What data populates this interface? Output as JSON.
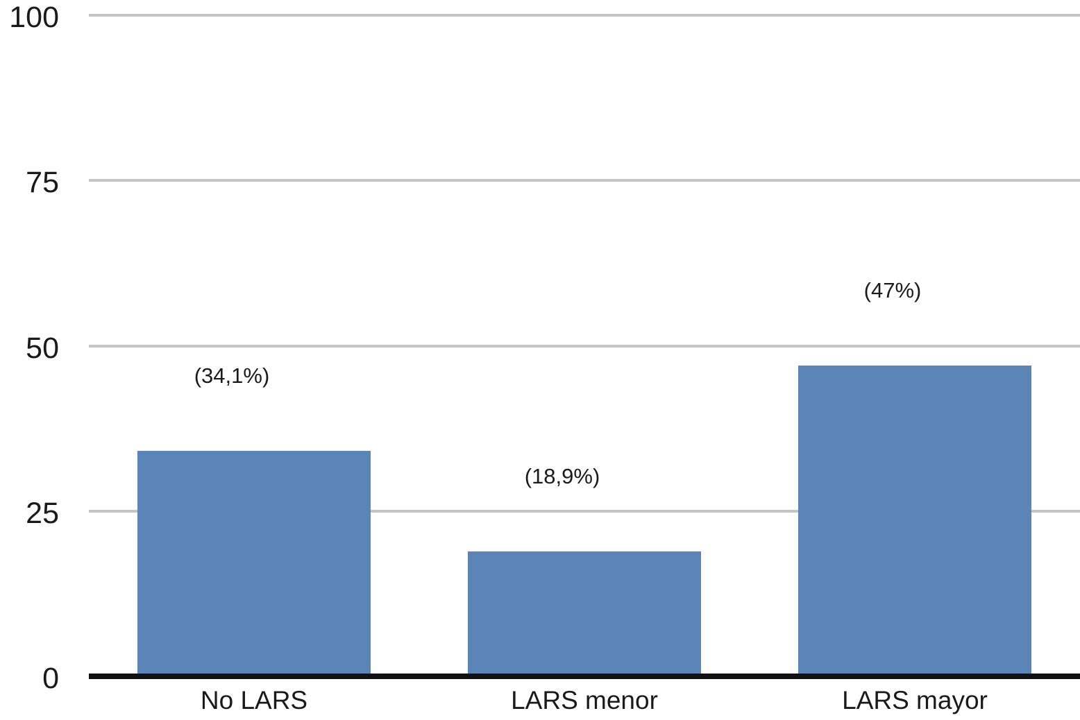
{
  "chart_data": {
    "type": "bar",
    "title": "",
    "xlabel": "",
    "ylabel": "",
    "categories": [
      "No LARS",
      "LARS menor",
      "LARS mayor"
    ],
    "values": [
      34.1,
      18.9,
      47
    ],
    "value_labels": [
      "(34,1%)",
      "(18,9%)",
      "(47%)"
    ],
    "ylim": [
      0,
      100
    ],
    "yticks": [
      0,
      25,
      50,
      75,
      100
    ],
    "ytick_labels": [
      "0",
      "25",
      "50",
      "75",
      "100"
    ],
    "grid": true,
    "legend": false,
    "bar_color": "#5B84B7",
    "gridline_color": "#C5C5C5",
    "axis_line_color": "#111111",
    "text_color": "#1A1A1A"
  }
}
